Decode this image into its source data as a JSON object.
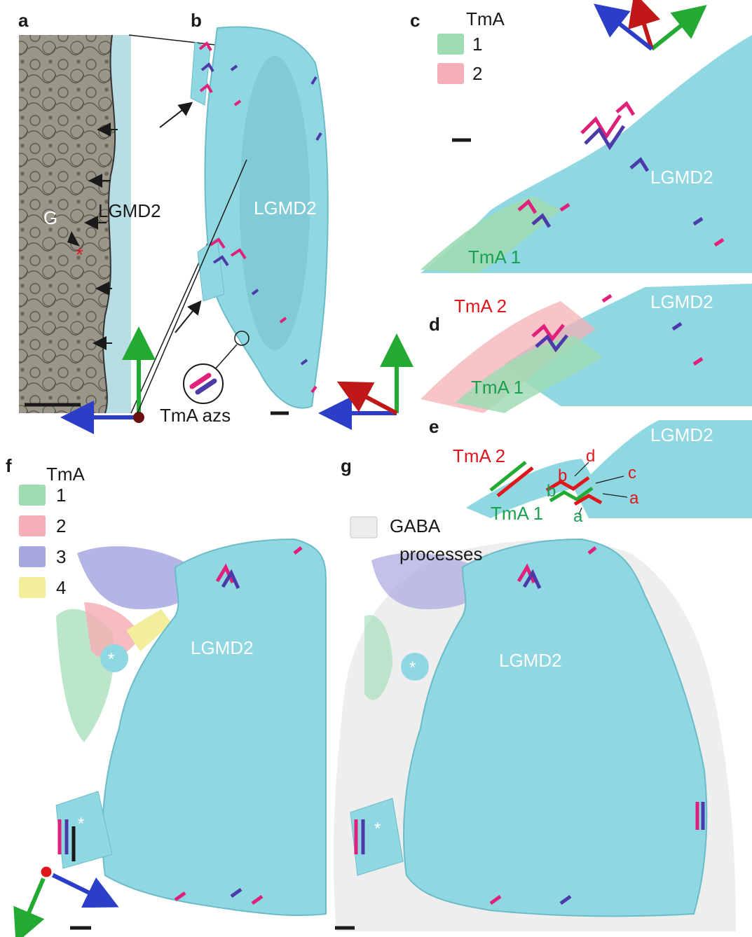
{
  "panels": {
    "a": {
      "letter": "a",
      "structure": "LGMD2",
      "glia": "G",
      "star": "*"
    },
    "b": {
      "letter": "b",
      "structure": "LGMD2",
      "inset_label": "TmA azs"
    },
    "c": {
      "letter": "c",
      "legend_title": "TmA",
      "legend_items": [
        "1",
        "2"
      ],
      "structure": "LGMD2",
      "tma1": "TmA 1"
    },
    "d": {
      "letter": "d",
      "structure": "LGMD2",
      "tma1": "TmA 1",
      "tma2": "TmA 2"
    },
    "e": {
      "letter": "e",
      "structure": "LGMD2",
      "tma1": "TmA 1",
      "tma2": "TmA 2",
      "red_sites": [
        "a",
        "b",
        "c",
        "d"
      ],
      "green_sites": [
        "a",
        "b"
      ]
    },
    "f": {
      "letter": "f",
      "legend_title": "TmA",
      "legend_items": [
        "1",
        "2",
        "3",
        "4"
      ],
      "structure": "LGMD2",
      "star": "*"
    },
    "g": {
      "letter": "g",
      "legend_line1": "GABA",
      "legend_line2": "processes",
      "structure": "LGMD2",
      "star": "*"
    }
  },
  "colors": {
    "lgmd2": "#8fd8e2",
    "tma1": "#9fdcb4",
    "tma2": "#f4b0b6",
    "tma3": "#a8a8e0",
    "tma4": "#f2ee9c",
    "gaba": "#ececec",
    "az_magenta": "#e0207a",
    "az_purple": "#4c3aa8",
    "axis_green": "#22aa33",
    "axis_red": "#c01818",
    "axis_blue": "#2a3ec8"
  }
}
